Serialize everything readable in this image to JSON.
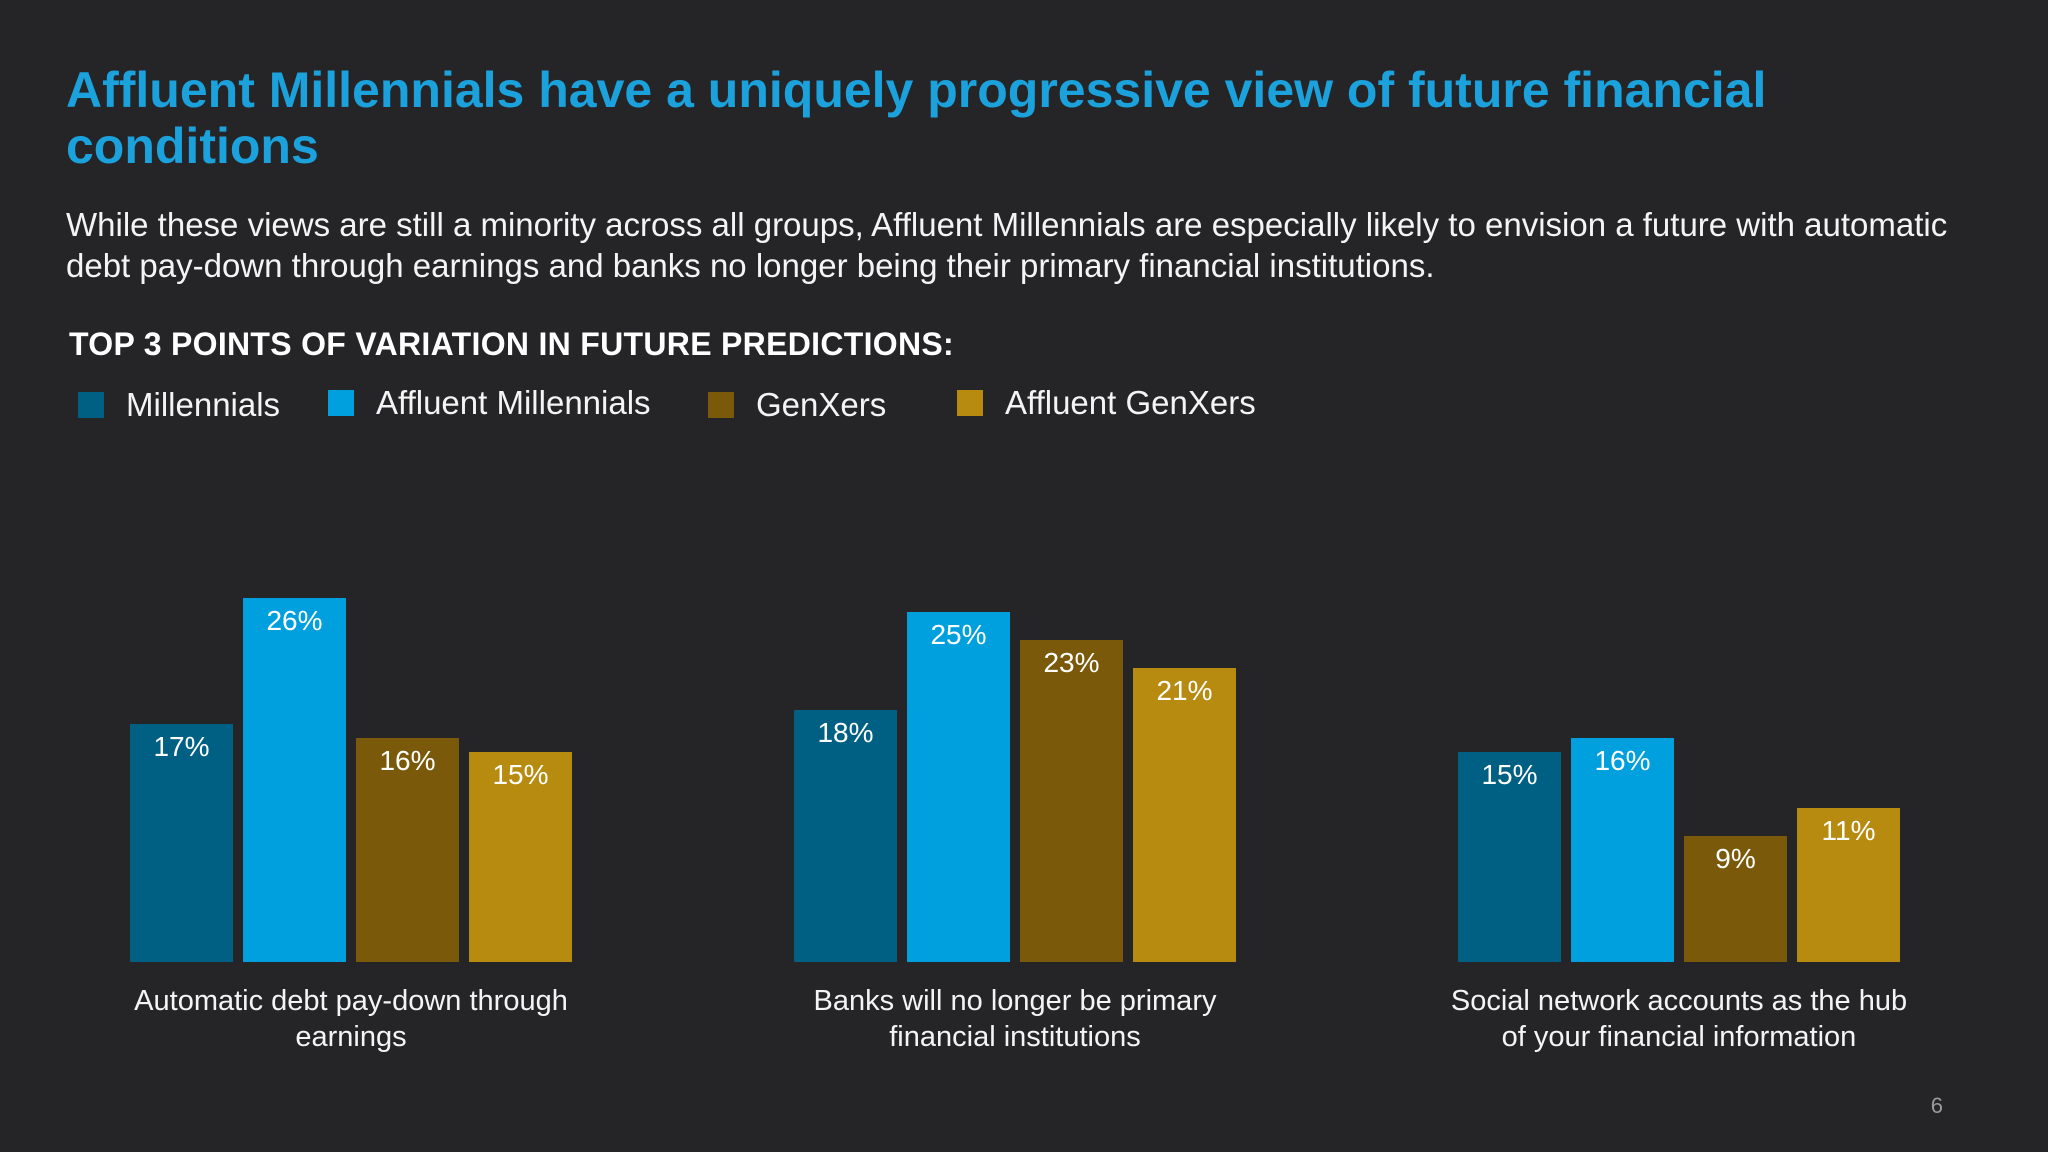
{
  "title": "Affluent Millennials have a uniquely progressive view of future financial conditions",
  "subtitle": "While these views are still a minority across all groups, Affluent Millennials are especially likely to envision a future with automatic debt pay-down through earnings and banks no longer being their primary financial institutions.",
  "section_heading": "TOP 3 POINTS OF VARIATION IN FUTURE PREDICTIONS:",
  "legend": [
    {
      "label": "Millennials",
      "color": "#006083"
    },
    {
      "label": "Affluent Millennials",
      "color": "#009fdd"
    },
    {
      "label": "GenXers",
      "color": "#7a5a0a"
    },
    {
      "label": "Affluent GenXers",
      "color": "#b78b10"
    }
  ],
  "page_number": "6",
  "chart_data": {
    "type": "bar",
    "title": "",
    "xlabel": "",
    "ylabel": "",
    "ylim": [
      0,
      30
    ],
    "grid": false,
    "legend_position": "top-left",
    "categories": [
      "Automatic debt pay-down through earnings",
      "Banks will no longer be primary financial institutions",
      "Social network accounts as the hub of your financial information"
    ],
    "category_lines": [
      [
        "Automatic debt pay-down through",
        "earnings"
      ],
      [
        "Banks will no longer be primary",
        "financial institutions"
      ],
      [
        "Social network accounts as the hub",
        "of your financial information"
      ]
    ],
    "series": [
      {
        "name": "Millennials",
        "color": "#006083",
        "values": [
          17,
          18,
          15
        ],
        "labels": [
          "17%",
          "18%",
          "15%"
        ]
      },
      {
        "name": "Affluent Millennials",
        "color": "#009fdd",
        "values": [
          26,
          25,
          16
        ],
        "labels": [
          "26%",
          "25%",
          "16%"
        ]
      },
      {
        "name": "GenXers",
        "color": "#7a5a0a",
        "values": [
          16,
          23,
          9
        ],
        "labels": [
          "16%",
          "23%",
          "9%"
        ]
      },
      {
        "name": "Affluent GenXers",
        "color": "#b78b10",
        "values": [
          15,
          21,
          11
        ],
        "labels": [
          "15%",
          "21%",
          "11%"
        ]
      }
    ]
  }
}
